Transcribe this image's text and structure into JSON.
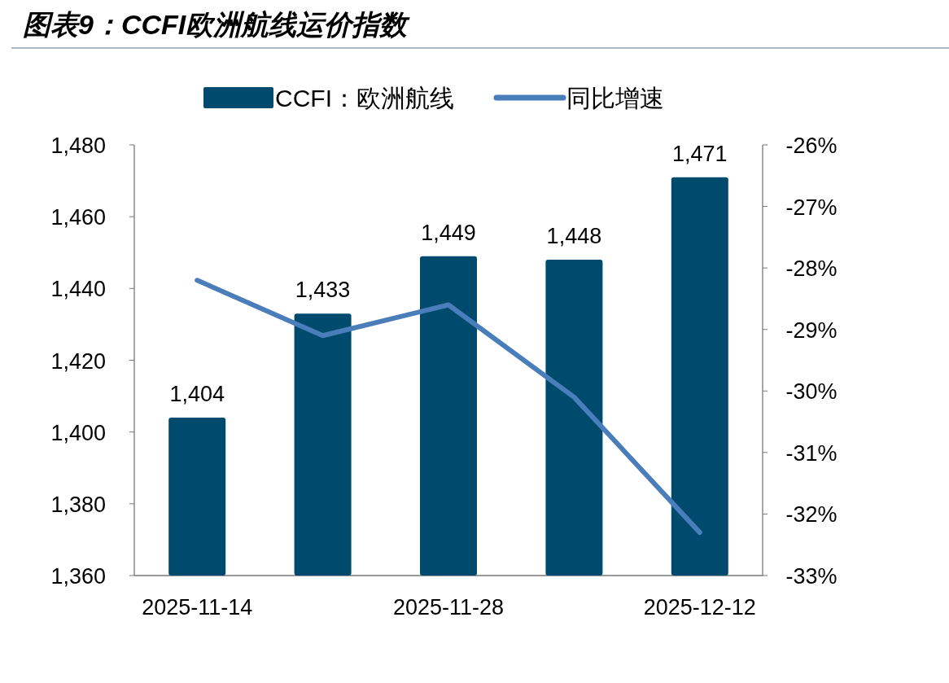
{
  "chart_data": {
    "type": "bar",
    "title": "图表9：CCFI欧洲航线运价指数",
    "categories": [
      "2025-11-14",
      null,
      "2025-11-28",
      null,
      "2025-12-12"
    ],
    "series": [
      {
        "name": "CCFI：欧洲航线",
        "color": "#004a6e",
        "values": [
          1404,
          1433,
          1449,
          1448,
          1471
        ],
        "value_labels": [
          "1,404",
          "1,433",
          "1,449",
          "1,448",
          "1,471"
        ]
      },
      {
        "name": "同比增速",
        "type": "line",
        "axis": "y2",
        "color": "#4a7ebb",
        "values": [
          -28.2,
          -29.1,
          -28.6,
          -30.1,
          -32.3
        ]
      }
    ],
    "ylim": [
      1360,
      1480
    ],
    "yticks": [
      {
        "value": 1360,
        "label": "1,360"
      },
      {
        "value": 1380,
        "label": "1,380"
      },
      {
        "value": 1400,
        "label": "1,400"
      },
      {
        "value": 1420,
        "label": "1,420"
      },
      {
        "value": 1440,
        "label": "1,440"
      },
      {
        "value": 1460,
        "label": "1,460"
      },
      {
        "value": 1480,
        "label": "1,480"
      }
    ],
    "y2lim": [
      -33,
      -26
    ],
    "y2ticks": [
      {
        "value": -33,
        "label": "-33%"
      },
      {
        "value": -32,
        "label": "-32%"
      },
      {
        "value": -31,
        "label": "-31%"
      },
      {
        "value": -30,
        "label": "-30%"
      },
      {
        "value": -29,
        "label": "-29%"
      },
      {
        "value": -28,
        "label": "-28%"
      },
      {
        "value": -27,
        "label": "-27%"
      },
      {
        "value": -26,
        "label": "-26%"
      }
    ],
    "grid": false,
    "legend": "top"
  }
}
